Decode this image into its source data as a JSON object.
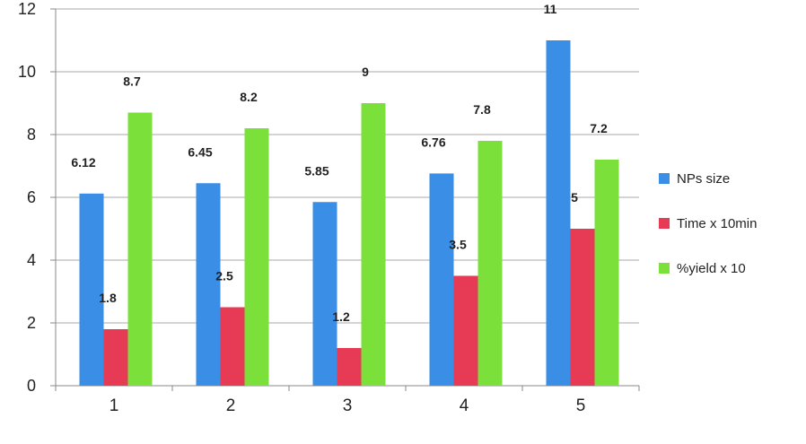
{
  "chart_data": {
    "type": "bar",
    "categories": [
      "1",
      "2",
      "3",
      "4",
      "5"
    ],
    "series": [
      {
        "name": "NPs size",
        "color": "#3a8ee6",
        "values": [
          6.12,
          6.45,
          5.85,
          6.76,
          11
        ],
        "labels": [
          "6.12",
          "6.45",
          "5.85",
          "6.76",
          "11"
        ]
      },
      {
        "name": "Time x 10min",
        "color": "#e63a55",
        "values": [
          1.8,
          2.5,
          1.2,
          3.5,
          5
        ],
        "labels": [
          "1.8",
          "2.5",
          "1.2",
          "3.5",
          "5"
        ]
      },
      {
        "name": "%yield x 10",
        "color": "#7be03a",
        "values": [
          8.7,
          8.2,
          9,
          7.8,
          7.2
        ],
        "labels": [
          "8.7",
          "8.2",
          "9",
          "7.8",
          "7.2"
        ]
      }
    ],
    "ylim": [
      0,
      12
    ],
    "yticks": [
      "0",
      "2",
      "4",
      "6",
      "8",
      "10",
      "12"
    ],
    "grid": true,
    "legend_position": "right",
    "title": "",
    "xlabel": "",
    "ylabel": ""
  }
}
